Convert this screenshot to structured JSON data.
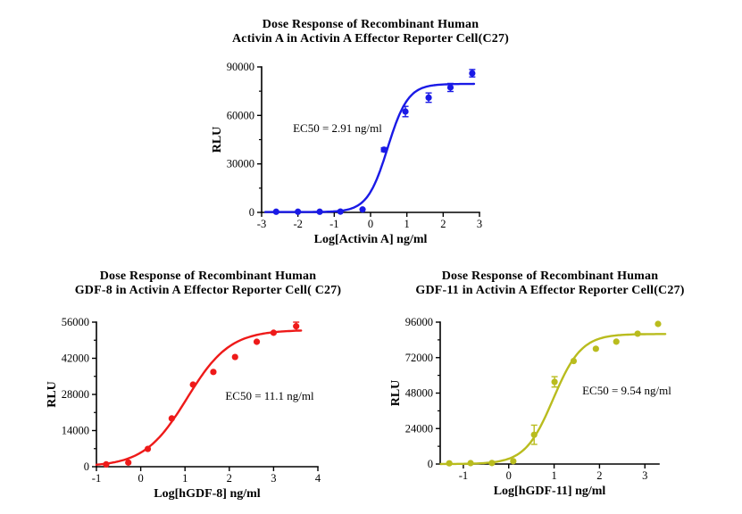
{
  "page": {
    "background": "#ffffff"
  },
  "chart_data": [
    {
      "type": "scatter",
      "name": "activin-a-dose-response",
      "title_line1": "Dose Response of Recombinant Human",
      "title_line2": "Activin A in Activin A Effector Reporter Cell(C27)",
      "ec50_label": "EC50 = 2.91 ng/ml",
      "color": "#1a1ae6",
      "xlabel": "Log[Activin A] ng/ml",
      "ylabel": "RLU",
      "xlim": [
        -3,
        3
      ],
      "ylim": [
        0,
        90000
      ],
      "xticks": [
        -3,
        -2,
        -1,
        0,
        1,
        2,
        3
      ],
      "yticks": [
        0,
        30000,
        60000,
        90000
      ],
      "grid": false,
      "x": [
        -2.6,
        -2.0,
        -1.4,
        -0.83,
        -0.22,
        0.37,
        0.96,
        1.6,
        2.2,
        2.8
      ],
      "y": [
        400,
        400,
        400,
        500,
        1800,
        38800,
        62400,
        71000,
        77300,
        86100
      ],
      "yerr": [
        0,
        0,
        0,
        0,
        0,
        1200,
        3200,
        2900,
        2500,
        2300
      ],
      "fit": {
        "bottom": 200,
        "top": 79500,
        "logEC50": 0.47,
        "hill": 1.55,
        "x_start": -2.9,
        "x_end": 2.85
      }
    },
    {
      "type": "scatter",
      "name": "gdf-8-dose-response",
      "title_line1": "Dose Response of Recombinant Human",
      "title_line2": "GDF-8 in Activin A Effector Reporter Cell( C27)",
      "ec50_label": "EC50 = 11.1 ng/ml",
      "color": "#ee1a19",
      "xlabel": "Log[hGDF-8] ng/ml",
      "ylabel": "RLU",
      "xlim": [
        -1,
        4
      ],
      "ylim": [
        0,
        56000
      ],
      "xticks": [
        -1,
        0,
        1,
        2,
        3,
        4
      ],
      "yticks": [
        0,
        14000,
        28000,
        42000,
        56000
      ],
      "grid": false,
      "x": [
        -0.78,
        -0.28,
        0.16,
        0.7,
        1.18,
        1.64,
        2.13,
        2.62,
        3.0,
        3.51
      ],
      "y": [
        900,
        1600,
        6900,
        18700,
        31800,
        36700,
        42500,
        48400,
        51900,
        54400
      ],
      "yerr": [
        0,
        0,
        0,
        0,
        0,
        0,
        0,
        0,
        0,
        1600
      ],
      "fit": {
        "bottom": 0,
        "top": 53000,
        "logEC50": 1.045,
        "hill": 0.9,
        "x_start": -1.0,
        "x_end": 3.62
      }
    },
    {
      "type": "scatter",
      "name": "gdf-11-dose-response",
      "title_line1": "Dose Response of Recombinant Human",
      "title_line2": "GDF-11 in Activin A Effector Reporter Cell(C27)",
      "ec50_label": "EC50 = 9.54 ng/ml",
      "color": "#b9bc1e",
      "xlabel": "Log[hGDF-11] ng/ml",
      "ylabel": "RLU",
      "xlim": [
        -1.51,
        3.31
      ],
      "ylim": [
        0,
        96000
      ],
      "xticks": [
        -1,
        0,
        1,
        2,
        3
      ],
      "yticks": [
        0,
        24000,
        48000,
        72000,
        96000
      ],
      "grid": false,
      "x": [
        -1.31,
        -0.84,
        -0.37,
        0.1,
        0.56,
        1.01,
        1.43,
        1.92,
        2.37,
        2.84,
        3.29
      ],
      "y": [
        500,
        600,
        700,
        1900,
        19800,
        55600,
        69700,
        78000,
        82800,
        88200,
        94800
      ],
      "yerr": [
        0,
        0,
        0,
        0,
        6500,
        3500,
        0,
        0,
        0,
        0,
        0
      ],
      "fit": {
        "bottom": 0,
        "top": 88000,
        "logEC50": 0.98,
        "hill": 1.4,
        "x_start": -1.5,
        "x_end": 3.45
      }
    }
  ]
}
